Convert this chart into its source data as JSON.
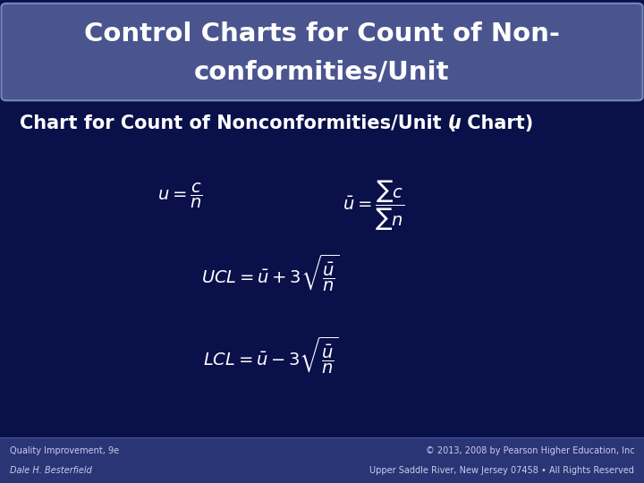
{
  "title_line1": "Control Charts for Count of Non-",
  "title_line2": "conformities/Unit",
  "subtitle_pre": "Chart for Count of Nonconformities/Unit (",
  "subtitle_u": "u",
  "subtitle_post": " Chart)",
  "footer_left1": "Quality Improvement, 9e",
  "footer_left2": "Dale H. Besterfield",
  "footer_right1": "© 2013, 2008 by Pearson Higher Education, Inc",
  "footer_right2": "Upper Saddle River, New Jersey 07458 • All Rights Reserved",
  "bg_color": "#09104a",
  "title_bg_color": "#4a5590",
  "title_border_color": "#7788bb",
  "footer_bg_color": "#2a3575",
  "title_text_color": "#ffffff",
  "body_text_color": "#ffffff",
  "formula_color": "#ffffff",
  "footer_text_color": "#ccccee",
  "title_fontsize": 21,
  "subtitle_fontsize": 15,
  "formula_fontsize": 14,
  "footer_fontsize": 7
}
